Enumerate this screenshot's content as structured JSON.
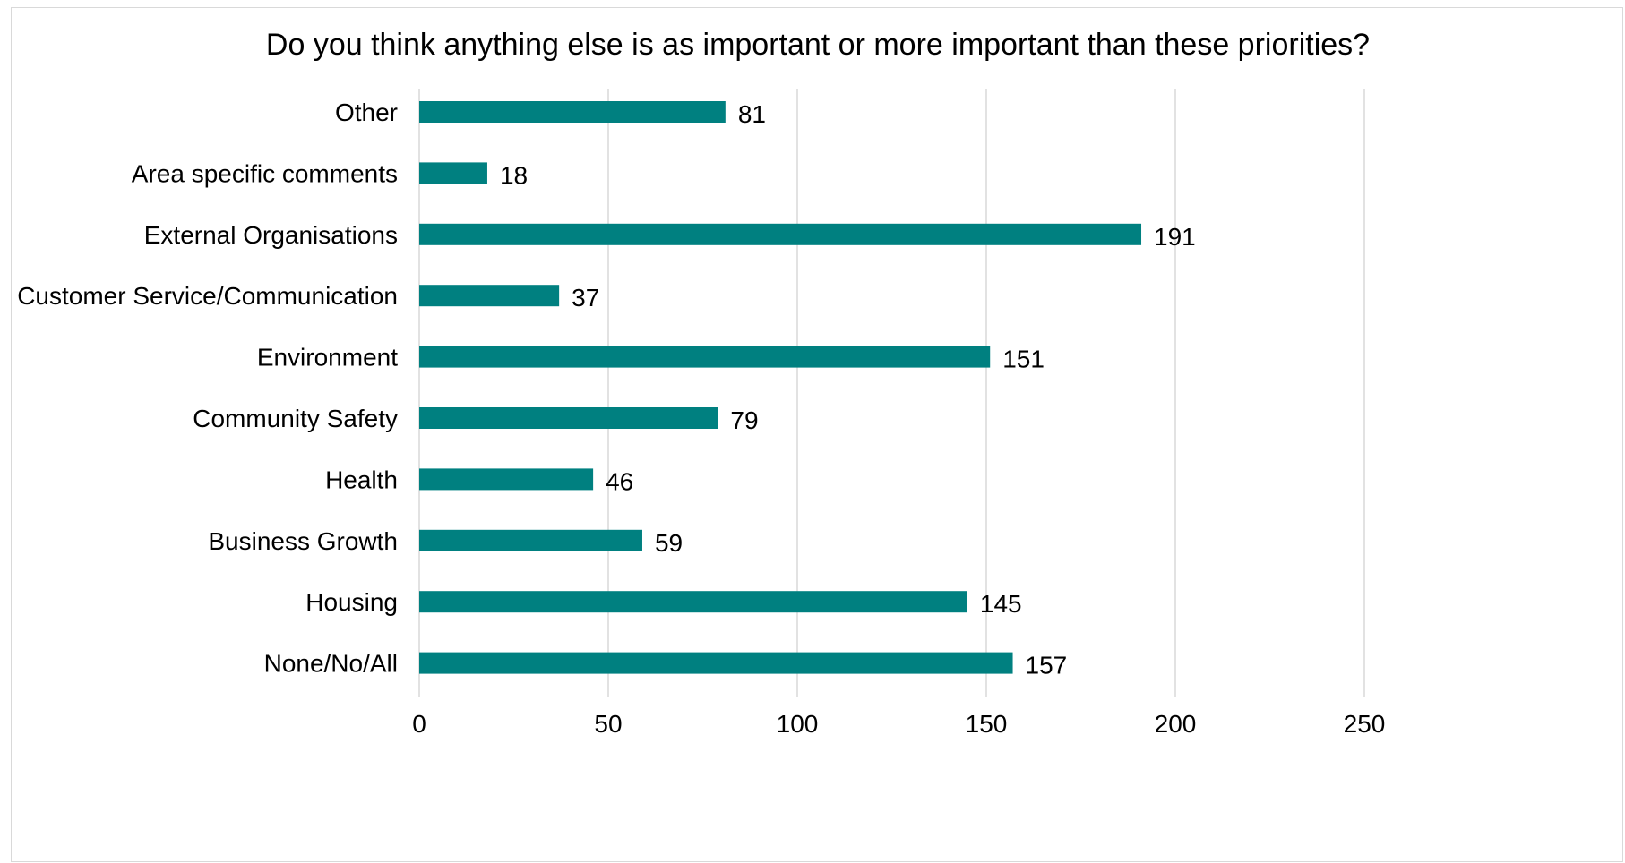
{
  "chart_data": {
    "type": "bar",
    "orientation": "horizontal",
    "title": "Do you think anything else is as important or more important than these priorities?",
    "categories": [
      "Other",
      "Area specific comments",
      "External Organisations",
      "Customer Service/Communication",
      "Environment",
      "Community Safety",
      "Health",
      "Business Growth",
      "Housing",
      "None/No/All"
    ],
    "values": [
      81,
      18,
      191,
      37,
      151,
      79,
      46,
      59,
      145,
      157
    ],
    "xlim": [
      0,
      250
    ],
    "xticks": [
      0,
      50,
      100,
      150,
      200,
      250
    ],
    "grid": "vertical",
    "legend": "none",
    "data_labels": true,
    "colors": {
      "bar": "#008080",
      "grid": "#d9d9d9",
      "frame": "#d9d9d9"
    }
  }
}
